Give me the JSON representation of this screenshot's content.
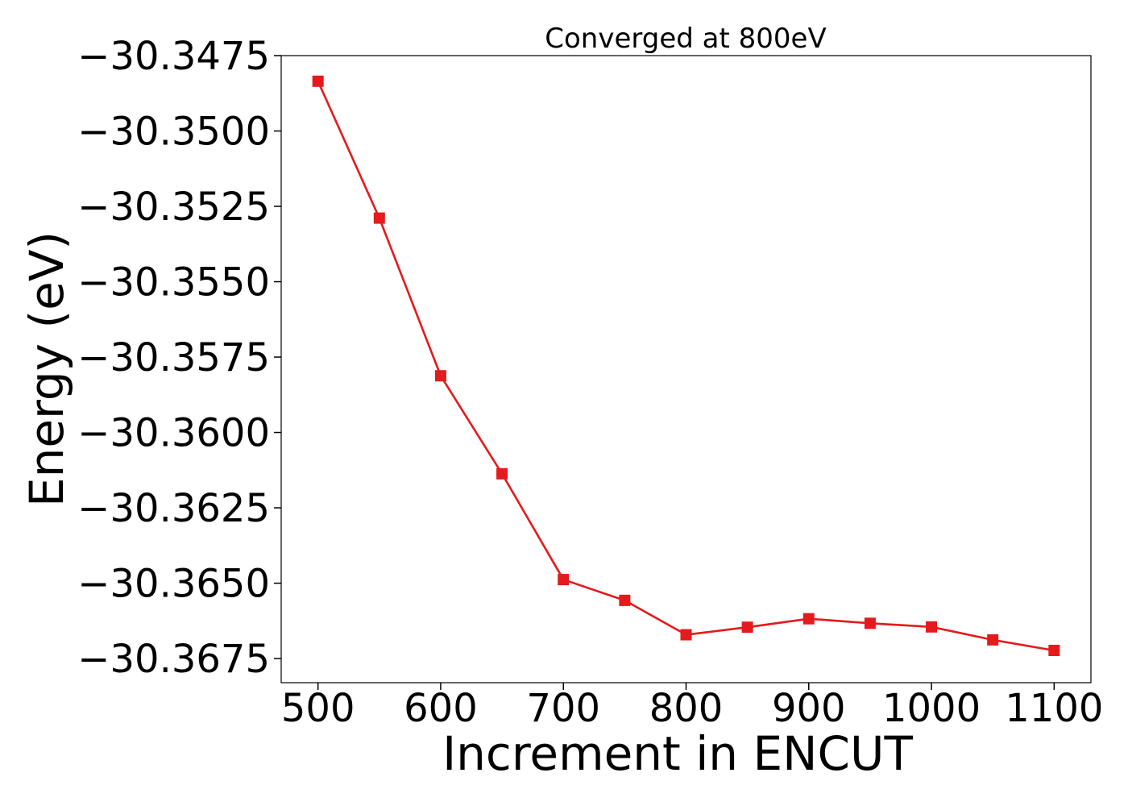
{
  "colors": {
    "series": "#e41a1c",
    "axis": "#000000",
    "background": "#ffffff"
  },
  "chart_data": {
    "type": "line",
    "title": "Converged at 800eV",
    "xlabel": "Increment in ENCUT",
    "ylabel": "Energy (eV)",
    "x": [
      500,
      550,
      600,
      650,
      700,
      750,
      800,
      850,
      900,
      950,
      1000,
      1050,
      1100
    ],
    "series": [
      {
        "marker": "square",
        "color": "#e41a1c",
        "values": [
          -30.34835,
          -30.35289,
          -30.35812,
          -30.36137,
          -30.36488,
          -30.36557,
          -30.36671,
          -30.36646,
          -30.36618,
          -30.36633,
          -30.36645,
          -30.36688,
          -30.36723
        ]
      }
    ],
    "xticks": [
      500,
      600,
      700,
      800,
      900,
      1000,
      1100
    ],
    "xtick_labels": [
      "500",
      "600",
      "700",
      "800",
      "900",
      "1000",
      "1100"
    ],
    "yticks": [
      -30.3475,
      -30.35,
      -30.3525,
      -30.355,
      -30.3575,
      -30.36,
      -30.3625,
      -30.365,
      -30.3675
    ],
    "ytick_labels": [
      "−30.3475",
      "−30.3500",
      "−30.3525",
      "−30.3550",
      "−30.3575",
      "−30.3600",
      "−30.3625",
      "−30.3650",
      "−30.3675"
    ],
    "xlim": [
      470,
      1130
    ],
    "ylim": [
      -30.3683,
      -30.3475
    ],
    "grid": false,
    "legend": "none"
  }
}
